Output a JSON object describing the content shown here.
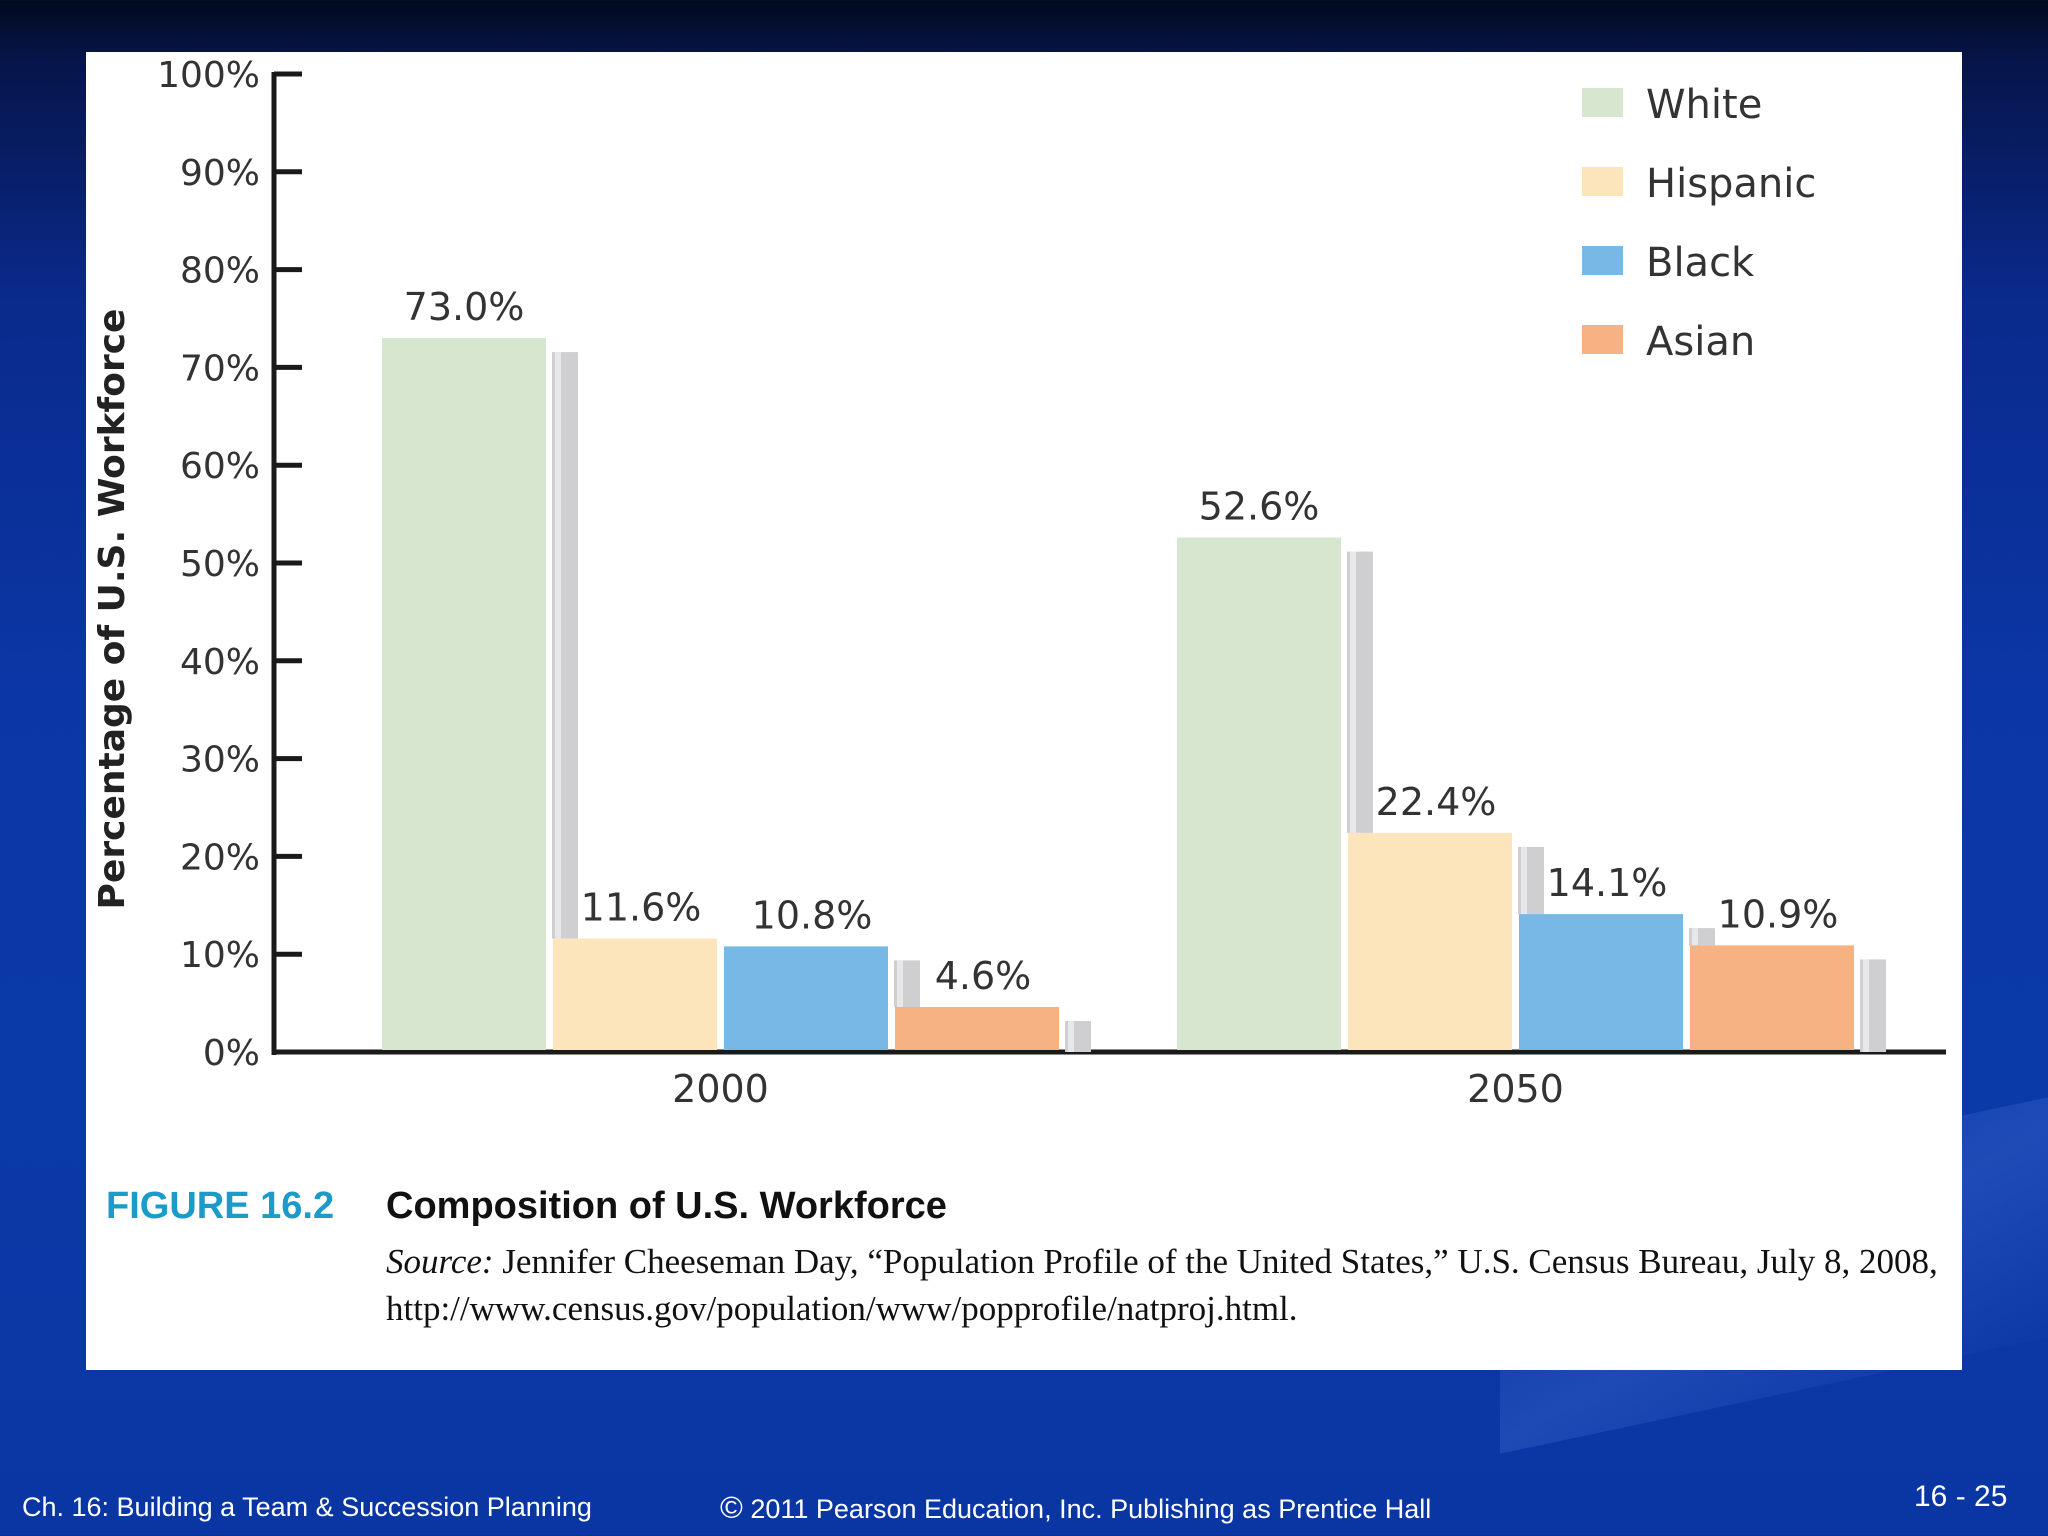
{
  "chart_data": {
    "type": "bar",
    "categories": [
      "2000",
      "2050"
    ],
    "series": [
      {
        "name": "White",
        "values": [
          73.0,
          52.6
        ],
        "labels": [
          "73.0%",
          "52.6%"
        ],
        "color": "#d6e6cf"
      },
      {
        "name": "Hispanic",
        "values": [
          11.6,
          22.4
        ],
        "labels": [
          "11.6%",
          "22.4%"
        ],
        "color": "#fce4bb"
      },
      {
        "name": "Black",
        "values": [
          10.8,
          14.1
        ],
        "labels": [
          "10.8%",
          "14.1%"
        ],
        "color": "#77b8e6"
      },
      {
        "name": "Asian",
        "values": [
          4.6,
          10.9
        ],
        "labels": [
          "4.6%",
          "10.9%"
        ],
        "color": "#f7b283"
      }
    ],
    "ylabel": "Percentage of U.S. Workforce",
    "xlabel": "",
    "ylim": [
      0,
      100
    ],
    "yticks": [
      "0%",
      "10%",
      "20%",
      "30%",
      "40%",
      "50%",
      "60%",
      "70%",
      "80%",
      "90%",
      "100%"
    ],
    "legend_position": "top-right",
    "grid": false
  },
  "figure": {
    "number": "FIGURE 16.2",
    "title": "Composition of  U.S. Workforce",
    "source_label": "Source:",
    "source_text": " Jennifer Cheeseman Day, “Population Profile of  the United States,” U.S. Census Bureau, July 8, 2008, http://www.census.gov/population/www/popprofile/natproj.html."
  },
  "footer": {
    "chapter": "Ch. 16: Building a Team & Succession Planning",
    "copyright_symbol": "©",
    "copyright": " 2011 Pearson Education, Inc. Publishing as Prentice Hall",
    "page": "16 - 25"
  },
  "colors": {
    "caption_accent": "#1b9bc9",
    "axis": "#1a1a1a",
    "bar_shadow": "#cfcfd2"
  }
}
